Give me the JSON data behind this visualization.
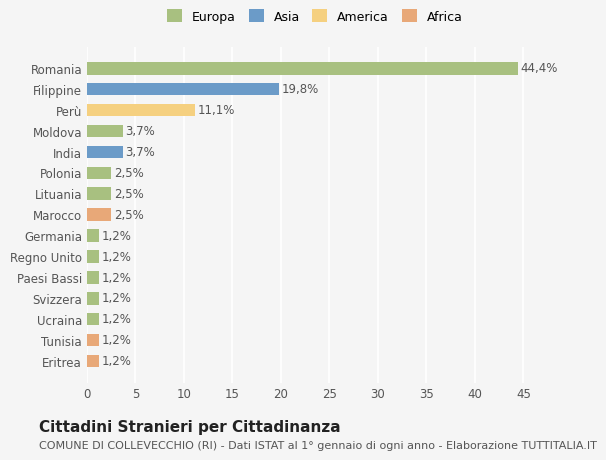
{
  "categories": [
    "Romania",
    "Filippine",
    "Perù",
    "Moldova",
    "India",
    "Polonia",
    "Lituania",
    "Marocco",
    "Germania",
    "Regno Unito",
    "Paesi Bassi",
    "Svizzera",
    "Ucraina",
    "Tunisia",
    "Eritrea"
  ],
  "values": [
    44.4,
    19.8,
    11.1,
    3.7,
    3.7,
    2.5,
    2.5,
    2.5,
    1.2,
    1.2,
    1.2,
    1.2,
    1.2,
    1.2,
    1.2
  ],
  "labels": [
    "44,4%",
    "19,8%",
    "11,1%",
    "3,7%",
    "3,7%",
    "2,5%",
    "2,5%",
    "2,5%",
    "1,2%",
    "1,2%",
    "1,2%",
    "1,2%",
    "1,2%",
    "1,2%",
    "1,2%"
  ],
  "colors": [
    "#a8c080",
    "#6b9bc8",
    "#f5d080",
    "#a8c080",
    "#6b9bc8",
    "#a8c080",
    "#a8c080",
    "#e8a878",
    "#a8c080",
    "#a8c080",
    "#a8c080",
    "#a8c080",
    "#a8c080",
    "#e8a878",
    "#e8a878"
  ],
  "legend": [
    {
      "label": "Europa",
      "color": "#a8c080"
    },
    {
      "label": "Asia",
      "color": "#6b9bc8"
    },
    {
      "label": "America",
      "color": "#f5d080"
    },
    {
      "label": "Africa",
      "color": "#e8a878"
    }
  ],
  "xlim": [
    0,
    47
  ],
  "xticks": [
    0,
    5,
    10,
    15,
    20,
    25,
    30,
    35,
    40,
    45
  ],
  "title": "Cittadini Stranieri per Cittadinanza",
  "subtitle": "COMUNE DI COLLEVECCHIO (RI) - Dati ISTAT al 1° gennaio di ogni anno - Elaborazione TUTTITALIA.IT",
  "bg_color": "#f5f5f5",
  "grid_color": "#ffffff",
  "bar_height": 0.6,
  "label_fontsize": 8.5,
  "tick_fontsize": 8.5,
  "title_fontsize": 11,
  "subtitle_fontsize": 8
}
